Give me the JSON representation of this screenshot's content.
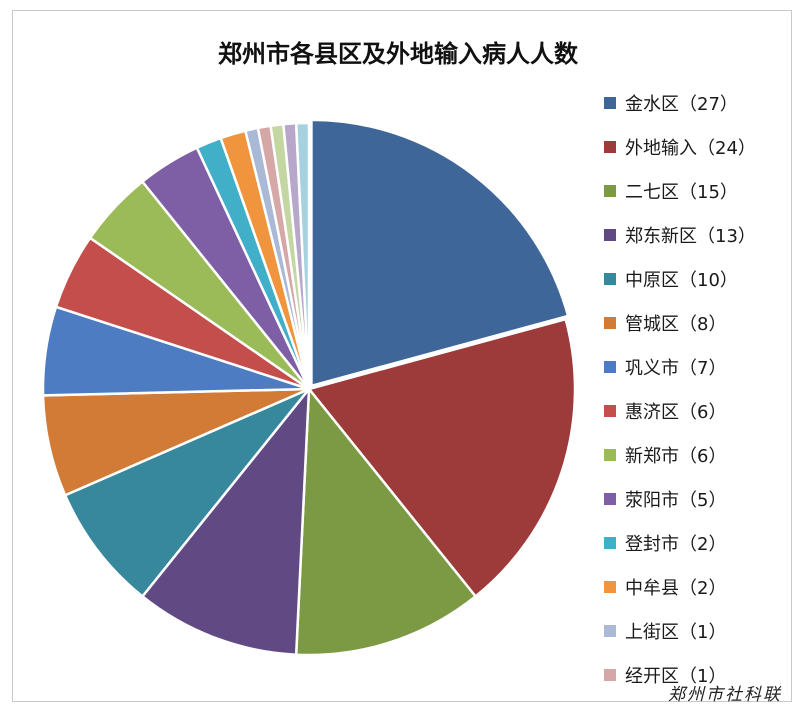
{
  "chart_data": {
    "type": "pie",
    "title": "郑州市各县区及外地输入病人人数",
    "slices": [
      {
        "name": "金水区",
        "value": 27,
        "legend_label": "金水区（27）",
        "color": "#3F6698"
      },
      {
        "name": "外地输入",
        "value": 24,
        "legend_label": "外地输入（24）",
        "color": "#9C3B3A"
      },
      {
        "name": "二七区",
        "value": 15,
        "legend_label": "二七区（15）",
        "color": "#7C9A44"
      },
      {
        "name": "郑东新区",
        "value": 13,
        "legend_label": "郑东新区（13）",
        "color": "#614A84"
      },
      {
        "name": "中原区",
        "value": 10,
        "legend_label": "中原区（10）",
        "color": "#37889C"
      },
      {
        "name": "管城区",
        "value": 8,
        "legend_label": "管城区（8）",
        "color": "#D17B36"
      },
      {
        "name": "巩义市",
        "value": 7,
        "legend_label": "巩义市（7）",
        "color": "#4E7CC2"
      },
      {
        "name": "惠济区",
        "value": 6,
        "legend_label": "惠济区（6）",
        "color": "#C44E4B"
      },
      {
        "name": "新郑市",
        "value": 6,
        "legend_label": "新郑市（6）",
        "color": "#9BBB59"
      },
      {
        "name": "荥阳市",
        "value": 5,
        "legend_label": "荥阳市（5）",
        "color": "#7E5FA6"
      },
      {
        "name": "登封市",
        "value": 2,
        "legend_label": "登封市（2）",
        "color": "#42AFC9"
      },
      {
        "name": "中牟县",
        "value": 2,
        "legend_label": "中牟县（2）",
        "color": "#F0943E"
      },
      {
        "name": "上街区",
        "value": 1,
        "legend_label": "上街区（1）",
        "color": "#A9B9D6"
      },
      {
        "name": "经开区",
        "value": 1,
        "legend_label": "经开区（1）",
        "color": "#D5A7A6"
      },
      {
        "name": "",
        "value": 1,
        "legend_label": "",
        "color": "#C4D6A1"
      },
      {
        "name": "",
        "value": 1,
        "legend_label": "",
        "color": "#B7A8CB"
      },
      {
        "name": "",
        "value": 1,
        "legend_label": "",
        "color": "#A6D1DF"
      }
    ],
    "legend_position": "right",
    "grid": false
  },
  "watermark": "郑州市社科联"
}
